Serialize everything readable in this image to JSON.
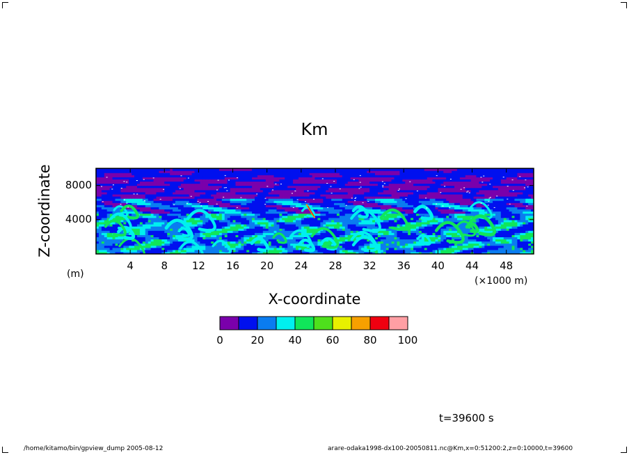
{
  "chart_data": {
    "type": "heatmap",
    "title": "Km",
    "xlabel": "X-coordinate",
    "ylabel": "Z-coordinate",
    "x_unit": "(×1000 m)",
    "y_unit": "(m)",
    "xlim": [
      0,
      51.2
    ],
    "ylim": [
      0,
      10000
    ],
    "x_ticks": [
      "4",
      "8",
      "12",
      "16",
      "20",
      "24",
      "28",
      "32",
      "36",
      "40",
      "44",
      "48"
    ],
    "y_ticks": [
      "4000",
      "8000"
    ],
    "colorbar": {
      "levels": [
        0,
        10,
        20,
        30,
        40,
        50,
        60,
        70,
        80,
        90,
        100
      ],
      "tick_labels": [
        "0",
        "20",
        "40",
        "60",
        "80",
        "100"
      ],
      "colors": [
        "#7a00ab",
        "#0010ef",
        "#0a7cf0",
        "#00f0ef",
        "#10e65a",
        "#4ee01c",
        "#e8f000",
        "#f7a000",
        "#f00010",
        "#ff9fa4"
      ]
    },
    "grid": false
  },
  "annotations": {
    "time": "t=39600 s",
    "footer_left": "/home/kitamo/bin/gpview_dump  2005-08-12",
    "footer_right": "arare-odaka1998-dx100-20050811.nc@Km,x=0:51200:2,z=0:10000,t=39600"
  }
}
